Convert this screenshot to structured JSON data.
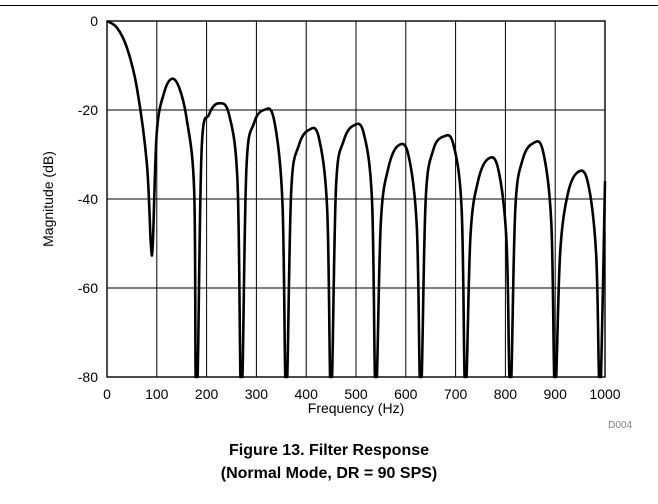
{
  "chart_data": {
    "type": "line",
    "xlabel": "Frequency (Hz)",
    "ylabel": "Magnitude (dB)",
    "xlim": [
      0,
      1000
    ],
    "ylim": [
      -80,
      0
    ],
    "xticks": [
      "0",
      "100",
      "200",
      "300",
      "400",
      "500",
      "600",
      "700",
      "800",
      "900",
      "1000"
    ],
    "yticks": [
      "0",
      "-20",
      "-40",
      "-60",
      "-80"
    ],
    "grid": true,
    "line_color": "#000000",
    "nulls_hz": [
      90,
      180,
      270,
      360,
      450,
      540,
      630,
      720,
      810,
      900,
      990
    ],
    "x": [
      0,
      20,
      40,
      60,
      80,
      88,
      92,
      100,
      115,
      130,
      145,
      160,
      175,
      178,
      182,
      190,
      205,
      225,
      245,
      262,
      268,
      272,
      280,
      295,
      315,
      335,
      352,
      358,
      362,
      370,
      385,
      405,
      425,
      442,
      448,
      452,
      460,
      475,
      495,
      515,
      532,
      538,
      542,
      550,
      565,
      585,
      605,
      622,
      628,
      632,
      640,
      655,
      675,
      695,
      712,
      718,
      722,
      730,
      745,
      765,
      785,
      802,
      808,
      812,
      820,
      835,
      855,
      875,
      892,
      898,
      902,
      910,
      925,
      945,
      965,
      982,
      988,
      992,
      1000
    ],
    "y": [
      0,
      -1.5,
      -6,
      -15,
      -32,
      -50,
      -50,
      -25,
      -16,
      -13,
      -15,
      -22,
      -38,
      -80,
      -80,
      -29,
      -21,
      -18.5,
      -21,
      -36,
      -80,
      -80,
      -33,
      -23,
      -20,
      -22,
      -40,
      -80,
      -80,
      -38,
      -28,
      -24.5,
      -26,
      -42,
      -80,
      -80,
      -37,
      -27,
      -23.5,
      -25,
      -40,
      -80,
      -80,
      -45,
      -33,
      -28,
      -30,
      -46,
      -80,
      -80,
      -40,
      -29,
      -26,
      -27.5,
      -42,
      -80,
      -80,
      -48,
      -36,
      -31,
      -33,
      -49,
      -80,
      -80,
      -42,
      -31,
      -27.5,
      -29,
      -45,
      -80,
      -80,
      -52,
      -39,
      -34,
      -36,
      -52,
      -80,
      -80,
      -36
    ],
    "figure_code": "D004"
  },
  "caption": {
    "line1": "Figure 13. Filter Response",
    "line2": "(Normal Mode, DR = 90 SPS)"
  }
}
